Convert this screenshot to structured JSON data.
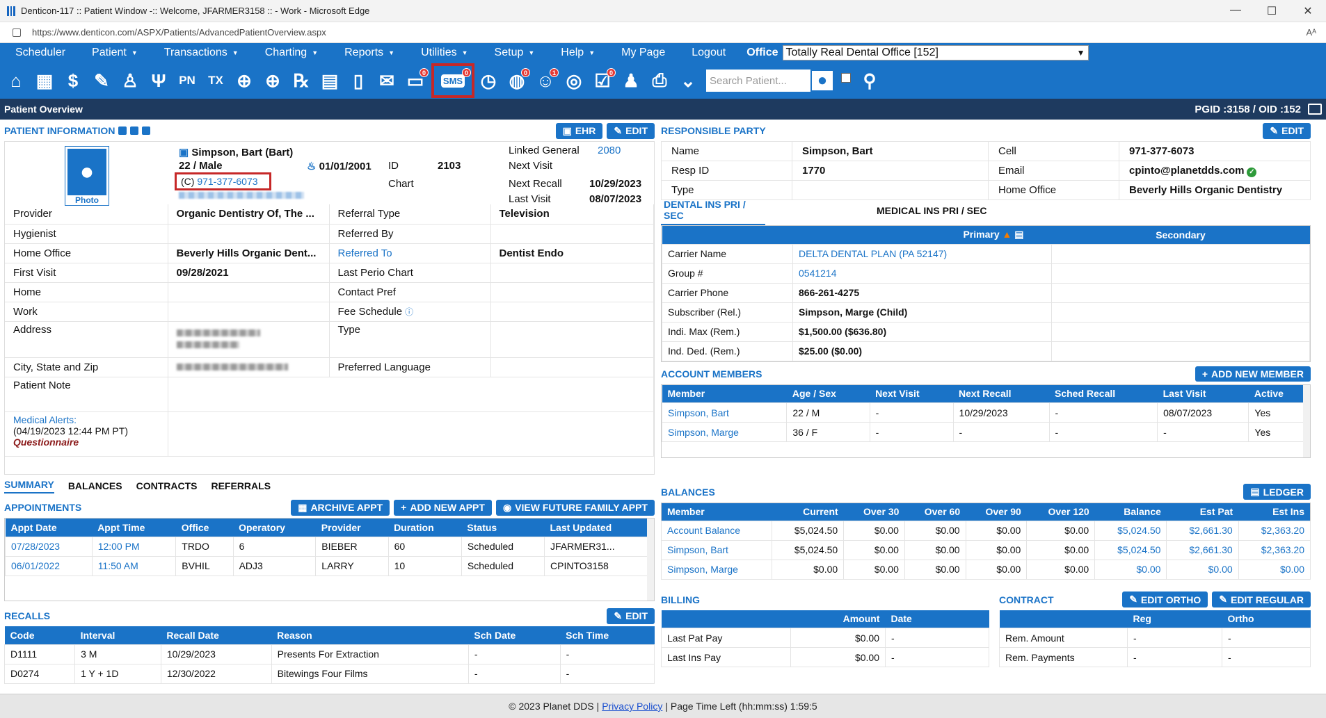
{
  "window": {
    "title": "Denticon-117 :: Patient Window -:: Welcome, JFARMER3158 :: - Work - Microsoft Edge",
    "url": "https://www.denticon.com/ASPX/Patients/AdvancedPatientOverview.aspx",
    "minimize": "—",
    "maximize": "☐",
    "close": "✕",
    "reader": "A͏ᴬ"
  },
  "menu": {
    "items": [
      "Scheduler",
      "Patient",
      "Transactions",
      "Charting",
      "Reports",
      "Utilities",
      "Setup",
      "Help",
      "My Page",
      "Logout"
    ],
    "office_label": "Office",
    "office_value": "Totally Real Dental Office [152]"
  },
  "toolbar": {
    "search_placeholder": "Search Patient...",
    "badges": {
      "messages": "0",
      "sms": "0",
      "globe": "0",
      "support": "1",
      "forms": "0"
    },
    "labels": {
      "pn": "PN",
      "tx": "TX",
      "rx": "℞",
      "sms": "SMS"
    }
  },
  "overview": {
    "title": "Patient Overview",
    "ids": "PGID :3158  /  OID :152"
  },
  "patient_info": {
    "title": "PATIENT INFORMATION",
    "ehr_btn": "EHR",
    "edit_btn": "EDIT",
    "photo_label": "Photo",
    "name": "Simpson, Bart (Bart)",
    "age_sex": "22 / Male",
    "dob": "01/01/2001",
    "phone_prefix": "(C)",
    "phone": "971-377-6073",
    "id_label": "ID",
    "id_value": "2103",
    "chart_label": "Chart",
    "linked_label": "Linked General",
    "linked_value": "2080",
    "next_visit_label": "Next Visit",
    "next_recall_label": "Next Recall",
    "next_recall_value": "10/29/2023",
    "last_visit_label": "Last Visit",
    "last_visit_value": "08/07/2023",
    "rows": [
      {
        "l1": "Provider",
        "v1": "Organic Dentistry Of, The ...",
        "l2": "Referral Type",
        "v2": "Television"
      },
      {
        "l1": "Hygienist",
        "v1": "",
        "l2": "Referred By",
        "v2": ""
      },
      {
        "l1": "Home Office",
        "v1": "Beverly Hills Organic Dent...",
        "l2": "Referred To",
        "v2": "Dentist Endo"
      },
      {
        "l1": "First Visit",
        "v1": "09/28/2021",
        "l2": "Last Perio Chart",
        "v2": ""
      },
      {
        "l1": "Home",
        "v1": "",
        "l2": "Contact Pref",
        "v2": ""
      },
      {
        "l1": "Work",
        "v1": "",
        "l2": "Fee Schedule",
        "v2": ""
      }
    ],
    "address_label": "Address",
    "type_label": "Type",
    "city_label": "City, State and Zip",
    "pref_lang_label": "Preferred Language",
    "note_label": "Patient Note",
    "medical_alerts_label": "Medical Alerts:",
    "medical_alerts_time": "(04/19/2023 12:44 PM PT)",
    "questionnaire": "Questionnaire"
  },
  "tabs": [
    "SUMMARY",
    "BALANCES",
    "CONTRACTS",
    "REFERRALS"
  ],
  "appointments": {
    "title": "APPOINTMENTS",
    "buttons": [
      "ARCHIVE APPT",
      "ADD NEW APPT",
      "VIEW FUTURE FAMILY APPT"
    ],
    "columns": [
      "Appt Date",
      "Appt Time",
      "Office",
      "Operatory",
      "Provider",
      "Duration",
      "Status",
      "Last Updated"
    ],
    "rows": [
      [
        "07/28/2023",
        "12:00 PM",
        "TRDO",
        "6",
        "BIEBER",
        "60",
        "Scheduled",
        "JFARMER31..."
      ],
      [
        "06/01/2022",
        "11:50 AM",
        "BVHIL",
        "ADJ3",
        "LARRY",
        "10",
        "Scheduled",
        "CPINTO3158"
      ]
    ]
  },
  "recalls": {
    "title": "RECALLS",
    "edit_btn": "EDIT",
    "columns": [
      "Code",
      "Interval",
      "Recall Date",
      "Reason",
      "Sch Date",
      "Sch Time"
    ],
    "rows": [
      [
        "D1111",
        "3 M",
        "10/29/2023",
        "Presents For Extraction",
        "-",
        "-"
      ],
      [
        "D0274",
        "1 Y + 1D",
        "12/30/2022",
        "Bitewings Four Films",
        "-",
        "-"
      ]
    ]
  },
  "responsible_party": {
    "title": "RESPONSIBLE PARTY",
    "edit_btn": "EDIT",
    "rows": [
      {
        "l1": "Name",
        "v1": "Simpson, Bart",
        "l2": "Cell",
        "v2": "971-377-6073"
      },
      {
        "l1": "Resp ID",
        "v1": "1770",
        "l2": "Email",
        "v2": "cpinto@planetdds.com"
      },
      {
        "l1": "Type",
        "v1": "",
        "l2": "Home Office",
        "v2": "Beverly Hills Organic Dentistry"
      }
    ]
  },
  "insurance": {
    "tab_dental": "DENTAL INS PRI / SEC",
    "tab_medical": "MEDICAL INS PRI / SEC",
    "primary": "Primary",
    "secondary": "Secondary",
    "rows": [
      {
        "l": "Carrier Name",
        "v": "DELTA DENTAL PLAN (PA 52147)",
        "link": true
      },
      {
        "l": "Group #",
        "v": "0541214",
        "link": true
      },
      {
        "l": "Carrier Phone",
        "v": "866-261-4275",
        "link": false
      },
      {
        "l": "Subscriber (Rel.)",
        "v": "Simpson, Marge (Child)",
        "link": false
      },
      {
        "l": "Indi. Max (Rem.)",
        "v": "$1,500.00 ($636.80)",
        "link": false
      },
      {
        "l": "Ind. Ded. (Rem.)",
        "v": "$25.00 ($0.00)",
        "link": false
      }
    ]
  },
  "account_members": {
    "title": "ACCOUNT MEMBERS",
    "add_btn": "ADD NEW MEMBER",
    "columns": [
      "Member",
      "Age / Sex",
      "Next Visit",
      "Next Recall",
      "Sched Recall",
      "Last Visit",
      "Active"
    ],
    "rows": [
      [
        "Simpson, Bart",
        "22 / M",
        "-",
        "10/29/2023",
        "-",
        "08/07/2023",
        "Yes"
      ],
      [
        "Simpson, Marge",
        "36 / F",
        "-",
        "-",
        "-",
        "-",
        "Yes"
      ]
    ]
  },
  "balances": {
    "title": "BALANCES",
    "ledger_btn": "LEDGER",
    "columns": [
      "Member",
      "Current",
      "Over 30",
      "Over 60",
      "Over 90",
      "Over 120",
      "Balance",
      "Est Pat",
      "Est Ins"
    ],
    "rows": [
      [
        "Account Balance",
        "$5,024.50",
        "$0.00",
        "$0.00",
        "$0.00",
        "$0.00",
        "$5,024.50",
        "$2,661.30",
        "$2,363.20"
      ],
      [
        "Simpson, Bart",
        "$5,024.50",
        "$0.00",
        "$0.00",
        "$0.00",
        "$0.00",
        "$5,024.50",
        "$2,661.30",
        "$2,363.20"
      ],
      [
        "Simpson, Marge",
        "$0.00",
        "$0.00",
        "$0.00",
        "$0.00",
        "$0.00",
        "$0.00",
        "$0.00",
        "$0.00"
      ]
    ]
  },
  "billing": {
    "title": "BILLING",
    "columns": [
      "",
      "Amount",
      "Date"
    ],
    "rows": [
      [
        "Last Pat Pay",
        "$0.00",
        "-"
      ],
      [
        "Last Ins Pay",
        "$0.00",
        "-"
      ]
    ]
  },
  "contract": {
    "title": "CONTRACT",
    "edit_ortho": "EDIT ORTHO",
    "edit_regular": "EDIT REGULAR",
    "columns": [
      "",
      "Reg",
      "Ortho"
    ],
    "rows": [
      [
        "Rem. Amount",
        "-",
        "-"
      ],
      [
        "Rem. Payments",
        "-",
        "-"
      ]
    ]
  },
  "footer": {
    "copyright": "© 2023 Planet DDS |",
    "privacy": "Privacy Policy",
    "time_left": "| Page Time Left (hh:mm:ss) 1:59:5"
  }
}
